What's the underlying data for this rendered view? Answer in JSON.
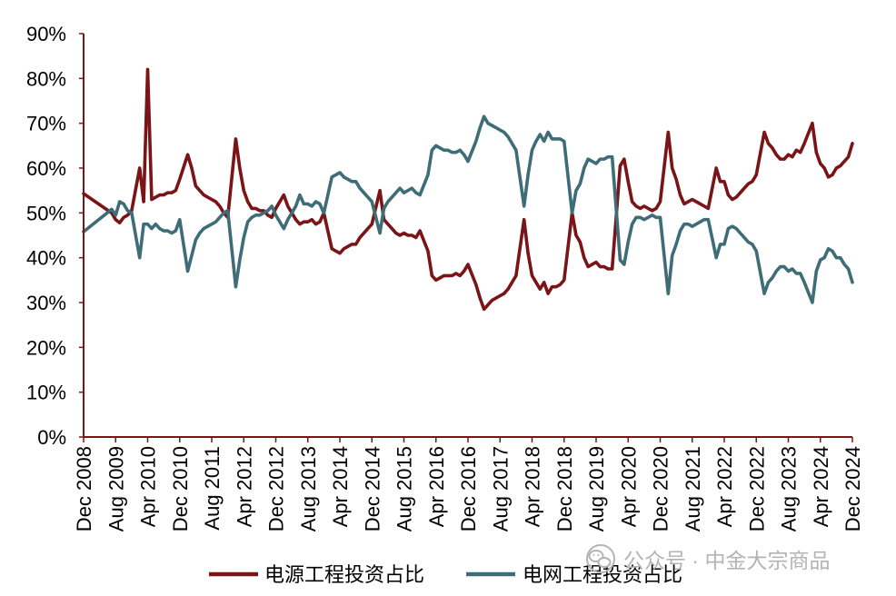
{
  "chart_data": {
    "type": "line",
    "ylim": [
      0,
      90
    ],
    "grid": false,
    "legend_position": "bottom",
    "axis_color": "#7a1416",
    "y_tick_labels": [
      "0%",
      "10%",
      "20%",
      "30%",
      "40%",
      "50%",
      "60%",
      "70%",
      "80%",
      "90%"
    ],
    "x_tick_labels": [
      "Dec 2008",
      "Aug 2009",
      "Apr 2010",
      "Dec 2010",
      "Aug 2011",
      "Apr 2012",
      "Dec 2012",
      "Aug 2013",
      "Apr 2014",
      "Dec 2014",
      "Aug 2015",
      "Apr 2016",
      "Dec 2016",
      "Aug 2017",
      "Apr 2018",
      "Dec 2018",
      "Aug 2019",
      "Apr 2020",
      "Dec 2020",
      "Aug 2021",
      "Apr 2022",
      "Dec 2022",
      "Aug 2023",
      "Apr 2024",
      "Dec 2024"
    ],
    "x": [
      "2008-12",
      "2009-07",
      "2009-08",
      "2009-09",
      "2009-10",
      "2009-11",
      "2009-12",
      "2010-02",
      "2010-03",
      "2010-04",
      "2010-05",
      "2010-06",
      "2010-07",
      "2010-08",
      "2010-09",
      "2010-10",
      "2010-11",
      "2010-12",
      "2011-02",
      "2011-03",
      "2011-04",
      "2011-05",
      "2011-06",
      "2011-07",
      "2011-08",
      "2011-09",
      "2011-10",
      "2011-11",
      "2011-12",
      "2012-02",
      "2012-03",
      "2012-04",
      "2012-05",
      "2012-06",
      "2012-07",
      "2012-08",
      "2012-09",
      "2012-10",
      "2012-11",
      "2012-12",
      "2013-02",
      "2013-03",
      "2013-04",
      "2013-05",
      "2013-06",
      "2013-07",
      "2013-08",
      "2013-09",
      "2013-10",
      "2013-11",
      "2013-12",
      "2014-02",
      "2014-03",
      "2014-04",
      "2014-05",
      "2014-06",
      "2014-07",
      "2014-08",
      "2014-09",
      "2014-10",
      "2014-11",
      "2014-12",
      "2015-02",
      "2015-03",
      "2015-04",
      "2015-05",
      "2015-06",
      "2015-07",
      "2015-08",
      "2015-09",
      "2015-10",
      "2015-11",
      "2015-12",
      "2016-02",
      "2016-03",
      "2016-04",
      "2016-05",
      "2016-06",
      "2016-07",
      "2016-08",
      "2016-09",
      "2016-10",
      "2016-11",
      "2016-12",
      "2017-02",
      "2017-03",
      "2017-04",
      "2017-05",
      "2017-06",
      "2017-07",
      "2017-08",
      "2017-09",
      "2017-10",
      "2017-11",
      "2017-12",
      "2018-02",
      "2018-03",
      "2018-04",
      "2018-05",
      "2018-06",
      "2018-07",
      "2018-08",
      "2018-09",
      "2018-10",
      "2018-11",
      "2018-12",
      "2019-02",
      "2019-03",
      "2019-04",
      "2019-05",
      "2019-06",
      "2019-07",
      "2019-08",
      "2019-09",
      "2019-10",
      "2019-11",
      "2019-12",
      "2020-02",
      "2020-03",
      "2020-04",
      "2020-05",
      "2020-06",
      "2020-07",
      "2020-08",
      "2020-09",
      "2020-10",
      "2020-11",
      "2020-12",
      "2021-02",
      "2021-03",
      "2021-04",
      "2021-05",
      "2021-06",
      "2021-07",
      "2021-08",
      "2021-09",
      "2021-10",
      "2021-11",
      "2021-12",
      "2022-02",
      "2022-03",
      "2022-04",
      "2022-05",
      "2022-06",
      "2022-07",
      "2022-08",
      "2022-09",
      "2022-10",
      "2022-11",
      "2022-12",
      "2023-02",
      "2023-03",
      "2023-04",
      "2023-05",
      "2023-06",
      "2023-07",
      "2023-08",
      "2023-09",
      "2023-10",
      "2023-11",
      "2023-12",
      "2024-02",
      "2024-03",
      "2024-04",
      "2024-05",
      "2024-06",
      "2024-07",
      "2024-08",
      "2024-09",
      "2024-10",
      "2024-11",
      "2024-12"
    ],
    "series": [
      {
        "name": "电源工程投资占比",
        "color": "#7a1416",
        "values": [
          54.3,
          50.0,
          48.5,
          47.8,
          49.0,
          49.5,
          50.5,
          60.0,
          52.5,
          82.0,
          53.0,
          53.5,
          54.0,
          54.0,
          54.5,
          54.5,
          55.0,
          57.5,
          63.0,
          60.0,
          56.0,
          55.0,
          54.0,
          53.5,
          53.0,
          52.5,
          51.5,
          50.0,
          49.0,
          66.5,
          60.0,
          55.0,
          52.5,
          51.0,
          51.0,
          50.5,
          50.5,
          49.5,
          49.0,
          51.0,
          54.0,
          51.5,
          50.0,
          48.5,
          47.5,
          48.0,
          48.0,
          48.5,
          47.5,
          48.0,
          50.0,
          42.0,
          41.5,
          41.0,
          42.0,
          42.5,
          43.0,
          43.0,
          44.5,
          45.5,
          46.5,
          47.5,
          55.0,
          48.5,
          47.5,
          46.5,
          45.5,
          45.0,
          45.5,
          45.0,
          45.0,
          44.5,
          46.0,
          41.5,
          36.0,
          35.0,
          35.5,
          36.0,
          36.0,
          36.0,
          36.5,
          36.0,
          37.0,
          38.5,
          34.0,
          31.0,
          28.5,
          29.5,
          30.5,
          31.0,
          31.5,
          32.0,
          33.0,
          34.5,
          36.0,
          48.5,
          41.0,
          36.0,
          34.5,
          33.0,
          34.5,
          32.0,
          33.5,
          33.5,
          34.0,
          35.0,
          50.0,
          45.0,
          43.5,
          40.0,
          38.0,
          38.5,
          39.0,
          38.0,
          38.0,
          37.5,
          37.5,
          60.5,
          62.0,
          57.0,
          52.5,
          51.5,
          51.0,
          51.5,
          51.0,
          50.5,
          51.0,
          52.5,
          68.0,
          60.0,
          57.5,
          54.0,
          52.0,
          52.5,
          53.0,
          52.5,
          52.0,
          51.5,
          51.0,
          60.0,
          57.0,
          57.0,
          54.0,
          53.0,
          53.5,
          54.5,
          55.5,
          56.5,
          57.0,
          58.5,
          68.0,
          65.5,
          64.5,
          63.0,
          62.0,
          62.0,
          63.0,
          62.5,
          64.0,
          63.5,
          65.5,
          70.0,
          63.5,
          61.0,
          60.0,
          58.0,
          58.5,
          60.0,
          60.5,
          61.5,
          62.5,
          65.5
        ]
      },
      {
        "name": "电网工程投资占比",
        "color": "#3f6d77",
        "values": [
          45.8,
          50.8,
          49.5,
          52.5,
          52.0,
          50.5,
          50.0,
          40.0,
          47.5,
          47.5,
          46.5,
          47.5,
          46.5,
          46.0,
          46.0,
          45.5,
          46.0,
          48.5,
          37.0,
          40.5,
          44.0,
          45.5,
          46.5,
          47.0,
          47.5,
          48.0,
          49.0,
          50.0,
          50.5,
          33.5,
          39.5,
          44.5,
          48.0,
          49.0,
          49.5,
          49.5,
          50.0,
          50.5,
          51.5,
          49.5,
          46.5,
          48.5,
          50.0,
          51.5,
          54.0,
          52.0,
          52.0,
          51.5,
          52.5,
          52.0,
          50.0,
          58.0,
          58.5,
          59.0,
          58.0,
          57.5,
          57.0,
          57.0,
          55.5,
          54.5,
          53.5,
          52.5,
          45.5,
          51.0,
          52.5,
          53.5,
          54.5,
          55.5,
          54.5,
          55.0,
          55.5,
          54.5,
          54.0,
          58.5,
          64.0,
          65.0,
          64.5,
          64.0,
          64.0,
          63.5,
          63.5,
          64.0,
          63.0,
          61.5,
          66.0,
          69.0,
          71.5,
          70.0,
          69.5,
          69.0,
          68.5,
          68.0,
          67.0,
          65.5,
          64.0,
          51.5,
          58.5,
          64.0,
          66.0,
          67.5,
          66.0,
          68.0,
          66.5,
          66.5,
          66.5,
          66.0,
          50.0,
          55.0,
          56.5,
          60.0,
          62.0,
          61.5,
          61.0,
          62.0,
          62.0,
          62.5,
          62.5,
          39.5,
          38.5,
          43.5,
          47.5,
          49.0,
          49.0,
          48.5,
          49.0,
          49.5,
          49.0,
          49.0,
          32.0,
          40.5,
          43.0,
          46.0,
          47.5,
          47.5,
          47.0,
          47.5,
          48.0,
          48.5,
          48.5,
          40.0,
          43.0,
          43.0,
          46.5,
          47.0,
          46.5,
          45.5,
          44.5,
          43.5,
          43.0,
          41.5,
          32.0,
          34.5,
          35.5,
          37.0,
          38.0,
          38.0,
          37.0,
          37.5,
          36.5,
          36.5,
          34.5,
          30.0,
          37.0,
          39.5,
          40.0,
          42.0,
          41.5,
          40.0,
          40.0,
          38.5,
          37.5,
          34.5
        ]
      }
    ]
  },
  "watermark": {
    "icon": "wechat-logo-icon",
    "text": "公众号 · 中金大宗商品",
    "color": "#b4b4b4"
  }
}
